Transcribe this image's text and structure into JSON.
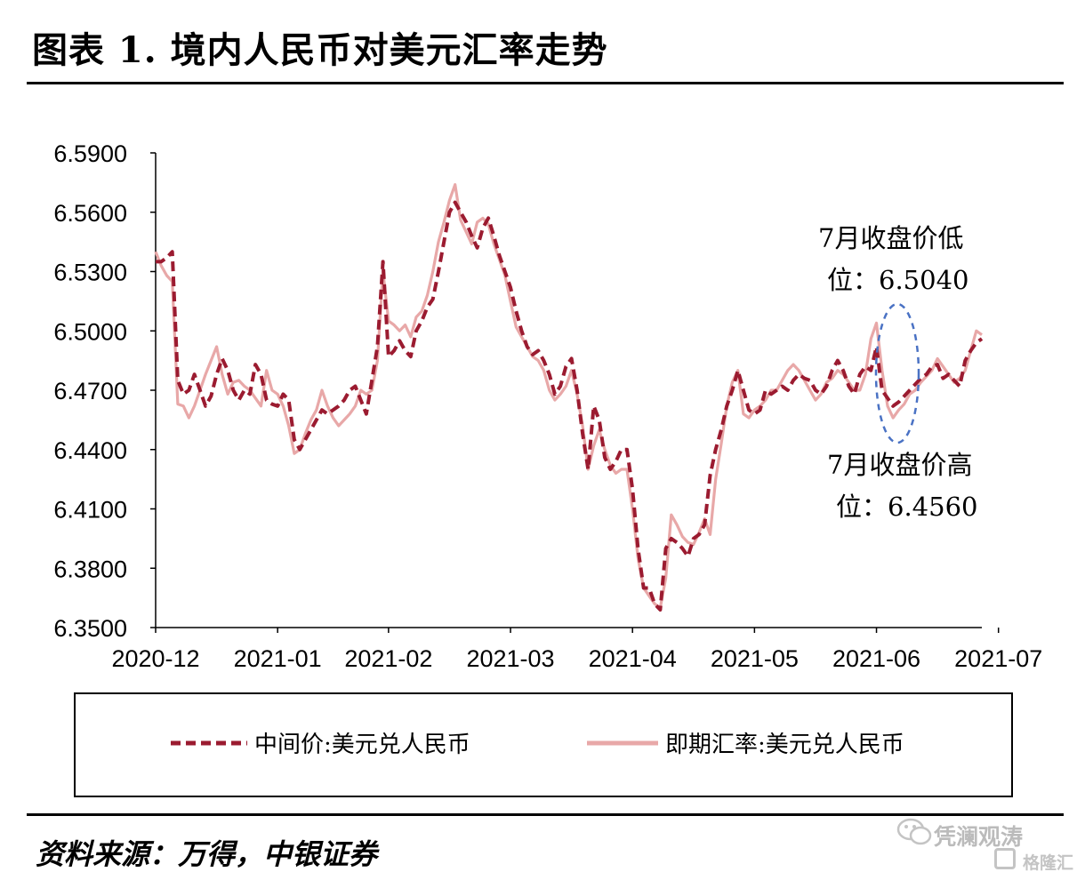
{
  "title": "图表 1. 境内人民币对美元汇率走势",
  "source": "资料来源：万得，中银证券",
  "watermark": {
    "text1": "凭澜观涛",
    "text2": "格隆汇"
  },
  "colors": {
    "mid": "#9b1b30",
    "spot": "#e8a8a8",
    "ellipse": "#4a72c4"
  },
  "chart_data": {
    "type": "line",
    "y_tick_labels": [
      "6.5900",
      "6.5600",
      "6.5300",
      "6.5000",
      "6.4700",
      "6.4400",
      "6.4100",
      "6.3800",
      "6.3500"
    ],
    "ylim": [
      6.35,
      6.59
    ],
    "x_tick_labels": [
      "2020-12",
      "2021-01",
      "2021-02",
      "2021-03",
      "2021-04",
      "2021-05",
      "2021-06",
      "2021-07"
    ],
    "x_tick_index": [
      0,
      22,
      42,
      64,
      86,
      108,
      130,
      152
    ],
    "series": [
      {
        "name": "中间价:美元兑人民币",
        "style": "dashed",
        "values": [
          6.535,
          6.535,
          6.537,
          6.54,
          6.475,
          6.468,
          6.47,
          6.478,
          6.47,
          6.462,
          6.467,
          6.478,
          6.486,
          6.48,
          6.47,
          6.465,
          6.47,
          6.468,
          6.483,
          6.478,
          6.465,
          6.463,
          6.462,
          6.468,
          6.465,
          6.445,
          6.44,
          6.445,
          6.45,
          6.455,
          6.46,
          6.458,
          6.46,
          6.462,
          6.465,
          6.47,
          6.472,
          6.465,
          6.458,
          6.475,
          6.492,
          6.535,
          6.487,
          6.49,
          6.495,
          6.49,
          6.487,
          6.5,
          6.505,
          6.512,
          6.516,
          6.53,
          6.545,
          6.56,
          6.565,
          6.56,
          6.555,
          6.548,
          6.542,
          6.552,
          6.557,
          6.548,
          6.538,
          6.53,
          6.522,
          6.51,
          6.5,
          6.492,
          6.488,
          6.49,
          6.485,
          6.478,
          6.468,
          6.472,
          6.482,
          6.486,
          6.47,
          6.448,
          6.43,
          6.462,
          6.455,
          6.436,
          6.43,
          6.434,
          6.44,
          6.44,
          6.42,
          6.39,
          6.37,
          6.37,
          6.362,
          6.359,
          6.39,
          6.395,
          6.393,
          6.39,
          6.386,
          6.395,
          6.397,
          6.402,
          6.427,
          6.44,
          6.45,
          6.462,
          6.47,
          6.48,
          6.47,
          6.46,
          6.458,
          6.46,
          6.47,
          6.468,
          6.47,
          6.472,
          6.47,
          6.475,
          6.478,
          6.476,
          6.475,
          6.47,
          6.468,
          6.472,
          6.48,
          6.485,
          6.48,
          6.472,
          6.468,
          6.478,
          6.482,
          6.48,
          6.492,
          6.47,
          6.466,
          6.462,
          6.464,
          6.467,
          6.47,
          6.473,
          6.476,
          6.478,
          6.482,
          6.483,
          6.476,
          6.478,
          6.475,
          6.472,
          6.485,
          6.49,
          6.494,
          6.496
        ]
      },
      {
        "name": "即期汇率:美元兑人民币",
        "style": "solid",
        "values": [
          6.54,
          6.533,
          6.528,
          6.525,
          6.463,
          6.462,
          6.456,
          6.462,
          6.47,
          6.478,
          6.485,
          6.492,
          6.478,
          6.468,
          6.474,
          6.475,
          6.472,
          6.47,
          6.466,
          6.462,
          6.48,
          6.47,
          6.468,
          6.462,
          6.452,
          6.438,
          6.44,
          6.448,
          6.455,
          6.46,
          6.47,
          6.462,
          6.456,
          6.452,
          6.455,
          6.458,
          6.462,
          6.47,
          6.468,
          6.47,
          6.485,
          6.53,
          6.505,
          6.503,
          6.5,
          6.503,
          6.497,
          6.507,
          6.51,
          6.518,
          6.53,
          6.545,
          6.555,
          6.566,
          6.574,
          6.556,
          6.55,
          6.544,
          6.555,
          6.557,
          6.554,
          6.544,
          6.536,
          6.528,
          6.515,
          6.502,
          6.497,
          6.492,
          6.487,
          6.485,
          6.48,
          6.47,
          6.465,
          6.468,
          6.472,
          6.48,
          6.468,
          6.452,
          6.43,
          6.442,
          6.45,
          6.44,
          6.432,
          6.428,
          6.43,
          6.43,
          6.41,
          6.385,
          6.37,
          6.366,
          6.362,
          6.36,
          6.375,
          6.407,
          6.402,
          6.396,
          6.393,
          6.392,
          6.398,
          6.405,
          6.397,
          6.425,
          6.443,
          6.462,
          6.474,
          6.48,
          6.458,
          6.456,
          6.46,
          6.462,
          6.465,
          6.47,
          6.47,
          6.475,
          6.48,
          6.483,
          6.48,
          6.475,
          6.47,
          6.465,
          6.468,
          6.474,
          6.476,
          6.48,
          6.478,
          6.474,
          6.47,
          6.47,
          6.478,
          6.496,
          6.504,
          6.48,
          6.462,
          6.456,
          6.46,
          6.463,
          6.468,
          6.47,
          6.474,
          6.477,
          6.48,
          6.486,
          6.482,
          6.478,
          6.474,
          6.476,
          6.48,
          6.49,
          6.5,
          6.498
        ]
      }
    ],
    "legend": "bottom",
    "annotations": {
      "low": {
        "line1": "7月收盘价低",
        "line2": "位：6.5040"
      },
      "high": {
        "line1": "7月收盘价高",
        "line2": "位：6.4560"
      }
    }
  }
}
